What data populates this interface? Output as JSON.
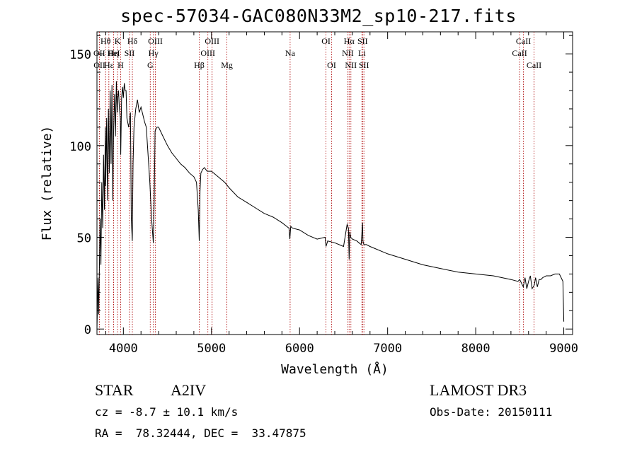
{
  "chart_data": {
    "type": "line",
    "title": "spec-57034-GAC080N33M2_sp10-217.fits",
    "xlabel": "Wavelength (Å)",
    "ylabel": "Flux (relative)",
    "xlim": [
      3700,
      9100
    ],
    "ylim": [
      -3,
      162
    ],
    "xticks": [
      4000,
      5000,
      6000,
      7000,
      8000,
      9000
    ],
    "yticks": [
      0,
      50,
      100,
      150
    ],
    "series": [
      {
        "name": "flux",
        "x": [
          3700,
          3712,
          3720,
          3735,
          3745,
          3755,
          3765,
          3775,
          3785,
          3795,
          3800,
          3810,
          3820,
          3830,
          3840,
          3850,
          3860,
          3870,
          3880,
          3885,
          3890,
          3900,
          3910,
          3920,
          3930,
          3935,
          3945,
          3955,
          3965,
          3970,
          3980,
          3990,
          4000,
          4010,
          4020,
          4030,
          4040,
          4060,
          4080,
          4090,
          4101,
          4110,
          4120,
          4140,
          4160,
          4180,
          4200,
          4220,
          4240,
          4260,
          4280,
          4300,
          4320,
          4340,
          4350,
          4360,
          4380,
          4400,
          4420,
          4450,
          4500,
          4550,
          4600,
          4650,
          4700,
          4750,
          4800,
          4830,
          4850,
          4861,
          4870,
          4880,
          4900,
          4920,
          4950,
          5000,
          5050,
          5100,
          5150,
          5200,
          5300,
          5400,
          5500,
          5600,
          5700,
          5800,
          5880,
          5890,
          5900,
          5920,
          6000,
          6100,
          6200,
          6290,
          6300,
          6320,
          6400,
          6500,
          6540,
          6555,
          6563,
          6570,
          6580,
          6600,
          6650,
          6700,
          6715,
          6720,
          6730,
          6760,
          6800,
          7000,
          7200,
          7400,
          7600,
          7800,
          8000,
          8200,
          8400,
          8480,
          8500,
          8520,
          8540,
          8560,
          8580,
          8600,
          8620,
          8640,
          8665,
          8680,
          8700,
          8720,
          8740,
          8760,
          8800,
          8850,
          8900,
          8950,
          8990,
          9000
        ],
        "y": [
          0,
          28,
          8,
          60,
          35,
          80,
          55,
          95,
          65,
          110,
          78,
          115,
          70,
          120,
          85,
          130,
          90,
          133,
          70,
          95,
          110,
          128,
          105,
          135,
          118,
          125,
          130,
          120,
          115,
          95,
          126,
          132,
          126,
          134,
          130,
          130,
          115,
          110,
          118,
          60,
          48,
          90,
          110,
          120,
          125,
          118,
          121,
          117,
          113,
          110,
          95,
          80,
          60,
          47,
          70,
          108,
          110,
          110,
          108,
          105,
          100,
          96,
          93,
          90,
          88,
          85,
          83,
          80,
          65,
          48,
          75,
          85,
          87,
          88,
          86,
          86,
          84,
          82,
          80,
          77,
          72,
          69,
          66,
          63,
          61,
          58,
          55,
          49,
          56,
          55,
          54,
          51,
          49,
          50,
          45,
          48,
          47,
          45,
          57,
          55,
          38,
          53,
          50,
          49,
          48,
          46,
          58,
          48,
          46,
          46,
          45,
          41,
          38,
          35,
          33,
          31,
          30,
          29,
          27,
          26,
          27,
          25,
          23,
          28,
          22,
          26,
          29,
          22,
          24,
          28,
          23,
          27,
          27,
          28,
          29,
          29,
          30,
          30,
          26,
          4
        ]
      }
    ],
    "lines": [
      {
        "name": "Hθ",
        "x": 3798,
        "row": 1
      },
      {
        "name": "OII",
        "x": 3727,
        "row": 2
      },
      {
        "name": "OII",
        "x": 3729,
        "row": 3
      },
      {
        "name": "Hε",
        "x": 3835,
        "row": 3
      },
      {
        "name": "Hη",
        "x": 3889,
        "row": 2
      },
      {
        "name": "HeI",
        "x": 3889,
        "row": 2
      },
      {
        "name": "K",
        "x": 3934,
        "row": 1
      },
      {
        "name": "H",
        "x": 3969,
        "row": 3
      },
      {
        "name": "SII",
        "x": 4069,
        "row": 2
      },
      {
        "name": "Hδ",
        "x": 4102,
        "row": 1
      },
      {
        "name": "OIII",
        "x": 4363,
        "row": 1
      },
      {
        "name": "Hγ",
        "x": 4340,
        "row": 2
      },
      {
        "name": "G",
        "x": 4305,
        "row": 3
      },
      {
        "name": "Hβ",
        "x": 4861,
        "row": 3
      },
      {
        "name": "OIII",
        "x": 4959,
        "row": 2
      },
      {
        "name": "OIII",
        "x": 5007,
        "row": 1
      },
      {
        "name": "Mg",
        "x": 5175,
        "row": 3
      },
      {
        "name": "Na",
        "x": 5893,
        "row": 2
      },
      {
        "name": "OI",
        "x": 6300,
        "row": 1
      },
      {
        "name": "OI",
        "x": 6364,
        "row": 3
      },
      {
        "name": "NII",
        "x": 6548,
        "row": 2
      },
      {
        "name": "Hα",
        "x": 6563,
        "row": 1
      },
      {
        "name": "NII",
        "x": 6583,
        "row": 3
      },
      {
        "name": "SII",
        "x": 6716,
        "row": 1
      },
      {
        "name": "SII",
        "x": 6731,
        "row": 3
      },
      {
        "name": "Li",
        "x": 6708,
        "row": 2
      },
      {
        "name": "CaII",
        "x": 8498,
        "row": 2
      },
      {
        "name": "CaII",
        "x": 8542,
        "row": 1
      },
      {
        "name": "CaII",
        "x": 8662,
        "row": 3
      }
    ]
  },
  "info": {
    "class": "STAR",
    "subclass": "A2IV",
    "survey": "LAMOST DR3",
    "cz": "cz = -8.7 ± 10.1 km/s",
    "obs_date": "Obs-Date: 20150111",
    "radec": "RA =  78.32444, DEC =  33.47875"
  }
}
